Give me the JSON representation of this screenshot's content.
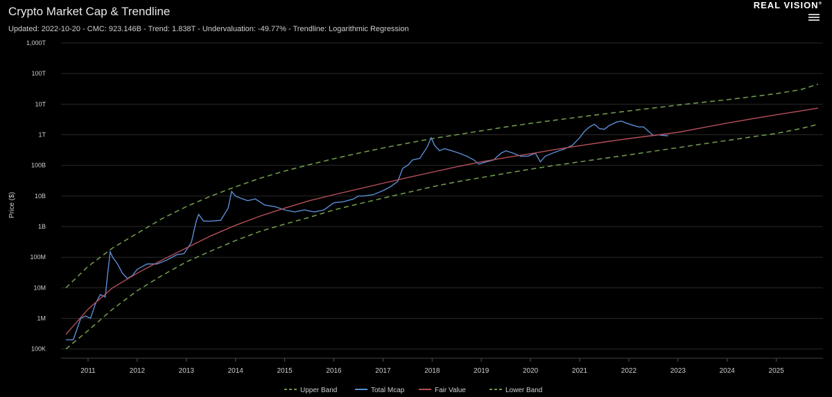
{
  "header": {
    "title": "Crypto Market Cap & Trendline",
    "subtitle": "Updated: 2022-10-20 - CMC: 923.146B - Trend: 1.838T - Undervaluation: -49.77% - Trendline: Logarithmic Regression",
    "brand": "REAL VISION",
    "brand_mark": "®",
    "menu_icon": "hamburger-menu-icon"
  },
  "colors": {
    "background": "#000000",
    "grid": "#2a2a2a",
    "total_mcap": "#5b8fd6",
    "fair_value": "#b8505a",
    "bands": "#6f9a4c",
    "axis_text": "#cfcfcf"
  },
  "chart_data": {
    "type": "line",
    "title": "Crypto Market Cap & Trendline",
    "ylabel": "Price ($)",
    "xlabel": "",
    "y_scale": "log",
    "ylim": [
      50000,
      1000000000000000
    ],
    "xlim": [
      2010.45,
      2025.95
    ],
    "y_ticks": [
      {
        "value": 100000,
        "label": "100K"
      },
      {
        "value": 1000000,
        "label": "1M"
      },
      {
        "value": 10000000,
        "label": "10M"
      },
      {
        "value": 100000000,
        "label": "100M"
      },
      {
        "value": 1000000000,
        "label": "1B"
      },
      {
        "value": 10000000000,
        "label": "10B"
      },
      {
        "value": 100000000000,
        "label": "100B"
      },
      {
        "value": 1000000000000,
        "label": "1T"
      },
      {
        "value": 10000000000000,
        "label": "10T"
      },
      {
        "value": 100000000000000,
        "label": "100T"
      },
      {
        "value": 1000000000000000,
        "label": "1,000T"
      }
    ],
    "x_ticks": [
      {
        "value": 2011,
        "label": "2011"
      },
      {
        "value": 2012,
        "label": "2012"
      },
      {
        "value": 2013,
        "label": "2013"
      },
      {
        "value": 2014,
        "label": "2014"
      },
      {
        "value": 2015,
        "label": "2015"
      },
      {
        "value": 2016,
        "label": "2016"
      },
      {
        "value": 2017,
        "label": "2017"
      },
      {
        "value": 2018,
        "label": "2018"
      },
      {
        "value": 2019,
        "label": "2019"
      },
      {
        "value": 2020,
        "label": "2020"
      },
      {
        "value": 2021,
        "label": "2021"
      },
      {
        "value": 2022,
        "label": "2022"
      },
      {
        "value": 2023,
        "label": "2023"
      },
      {
        "value": 2024,
        "label": "2024"
      },
      {
        "value": 2025,
        "label": "2025"
      }
    ],
    "grid": true,
    "legend_position": "bottom",
    "series": [
      {
        "name": "Upper Band",
        "style": "dashed",
        "color": "#6f9a4c",
        "x": [
          2010.55,
          2011.0,
          2011.5,
          2012.0,
          2012.5,
          2013.0,
          2013.5,
          2014.0,
          2014.5,
          2015.0,
          2015.5,
          2016.0,
          2016.5,
          2017.0,
          2017.5,
          2018.0,
          2018.5,
          2019.0,
          2019.5,
          2020.0,
          2020.5,
          2021.0,
          2021.5,
          2022.0,
          2022.5,
          2023.0,
          2023.5,
          2024.0,
          2024.5,
          2025.0,
          2025.5,
          2025.85
        ],
        "y": [
          10000000,
          50000000,
          200000000,
          600000000,
          1800000000,
          4500000000,
          10000000000,
          20000000000,
          38000000000,
          65000000000,
          105000000000,
          165000000000,
          250000000000,
          370000000000,
          530000000000,
          750000000000,
          1000000000000,
          1350000000000,
          1800000000000,
          2350000000000,
          3000000000000,
          3800000000000,
          4800000000000,
          6000000000000,
          7500000000000,
          9300000000000,
          11500000000000,
          14000000000000,
          17500000000000,
          22000000000000,
          30000000000000,
          45000000000000
        ]
      },
      {
        "name": "Total Mcap",
        "style": "solid",
        "color": "#5b8fd6",
        "x": [
          2010.55,
          2010.7,
          2010.85,
          2010.95,
          2011.05,
          2011.15,
          2011.25,
          2011.35,
          2011.4,
          2011.45,
          2011.5,
          2011.6,
          2011.7,
          2011.8,
          2011.9,
          2012.0,
          2012.2,
          2012.4,
          2012.6,
          2012.8,
          2012.95,
          2013.1,
          2013.2,
          2013.25,
          2013.35,
          2013.5,
          2013.7,
          2013.85,
          2013.92,
          2014.0,
          2014.1,
          2014.25,
          2014.4,
          2014.6,
          2014.8,
          2015.0,
          2015.2,
          2015.4,
          2015.6,
          2015.8,
          2016.0,
          2016.2,
          2016.4,
          2016.5,
          2016.6,
          2016.8,
          2017.0,
          2017.15,
          2017.3,
          2017.4,
          2017.5,
          2017.6,
          2017.75,
          2017.9,
          2017.98,
          2018.05,
          2018.15,
          2018.25,
          2018.4,
          2018.55,
          2018.7,
          2018.85,
          2018.95,
          2019.1,
          2019.25,
          2019.4,
          2019.5,
          2019.65,
          2019.8,
          2019.95,
          2020.1,
          2020.2,
          2020.3,
          2020.5,
          2020.7,
          2020.85,
          2021.0,
          2021.1,
          2021.2,
          2021.3,
          2021.4,
          2021.5,
          2021.6,
          2021.75,
          2021.85,
          2021.95,
          2022.1,
          2022.2,
          2022.3,
          2022.4,
          2022.5,
          2022.6,
          2022.7,
          2022.8
        ],
        "y": [
          200000,
          200000,
          1000000,
          1200000,
          1000000,
          3000000,
          6000000,
          5000000,
          30000000,
          150000000,
          100000000,
          60000000,
          30000000,
          20000000,
          25000000,
          40000000,
          60000000,
          60000000,
          80000000,
          120000000,
          130000000,
          300000000,
          1500000000,
          2500000000,
          1500000000,
          1500000000,
          1600000000,
          4000000000,
          14000000000,
          10000000000,
          8500000000,
          7000000000,
          8000000000,
          5000000000,
          4500000000,
          3500000000,
          3000000000,
          3500000000,
          3000000000,
          3500000000,
          6000000000,
          6500000000,
          8000000000,
          10000000000,
          10000000000,
          11000000000,
          15000000000,
          20000000000,
          30000000000,
          80000000000,
          100000000000,
          150000000000,
          170000000000,
          400000000000,
          800000000000,
          450000000000,
          300000000000,
          350000000000,
          300000000000,
          250000000000,
          200000000000,
          150000000000,
          110000000000,
          130000000000,
          150000000000,
          250000000000,
          300000000000,
          250000000000,
          200000000000,
          200000000000,
          250000000000,
          130000000000,
          200000000000,
          270000000000,
          350000000000,
          450000000000,
          800000000000,
          1300000000000,
          1800000000000,
          2200000000000,
          1600000000000,
          1500000000000,
          2000000000000,
          2600000000000,
          2800000000000,
          2400000000000,
          2000000000000,
          1800000000000,
          1800000000000,
          1300000000000,
          950000000000,
          1000000000000,
          950000000000,
          920000000000
        ]
      },
      {
        "name": "Fair Value",
        "style": "solid",
        "color": "#b8505a",
        "x": [
          2010.55,
          2011.0,
          2011.5,
          2012.0,
          2012.5,
          2013.0,
          2013.5,
          2014.0,
          2014.5,
          2015.0,
          2015.5,
          2016.0,
          2016.5,
          2017.0,
          2017.5,
          2018.0,
          2018.5,
          2019.0,
          2019.5,
          2020.0,
          2020.5,
          2021.0,
          2021.5,
          2022.0,
          2022.5,
          2023.0,
          2023.5,
          2024.0,
          2024.5,
          2025.0,
          2025.5,
          2025.85
        ],
        "y": [
          300000,
          2000000,
          10000000,
          30000000,
          80000000,
          200000000,
          500000000,
          1100000000,
          2200000000,
          4000000000,
          7000000000,
          11000000000,
          17000000000,
          26000000000,
          40000000000,
          60000000000,
          90000000000,
          130000000000,
          180000000000,
          240000000000,
          330000000000,
          440000000000,
          580000000000,
          750000000000,
          950000000000,
          1200000000000,
          1700000000000,
          2400000000000,
          3300000000000,
          4500000000000,
          6000000000000,
          7500000000000
        ]
      },
      {
        "name": "Lower Band",
        "style": "dashed",
        "color": "#6f9a4c",
        "x": [
          2010.55,
          2011.0,
          2011.5,
          2012.0,
          2012.5,
          2013.0,
          2013.5,
          2014.0,
          2014.5,
          2015.0,
          2015.5,
          2016.0,
          2016.5,
          2017.0,
          2017.5,
          2018.0,
          2018.5,
          2019.0,
          2019.5,
          2020.0,
          2020.5,
          2021.0,
          2021.5,
          2022.0,
          2022.5,
          2023.0,
          2023.5,
          2024.0,
          2024.5,
          2025.0,
          2025.5,
          2025.85
        ],
        "y": [
          100000,
          400000,
          2000000,
          8000000,
          25000000,
          70000000,
          160000000,
          350000000,
          700000000,
          1200000000,
          2000000000,
          3500000000,
          5500000000,
          8500000000,
          13000000000,
          20000000000,
          29000000000,
          40000000000,
          55000000000,
          75000000000,
          100000000000,
          130000000000,
          170000000000,
          220000000000,
          290000000000,
          380000000000,
          500000000000,
          650000000000,
          850000000000,
          1100000000000,
          1600000000000,
          2200000000000
        ]
      }
    ]
  }
}
